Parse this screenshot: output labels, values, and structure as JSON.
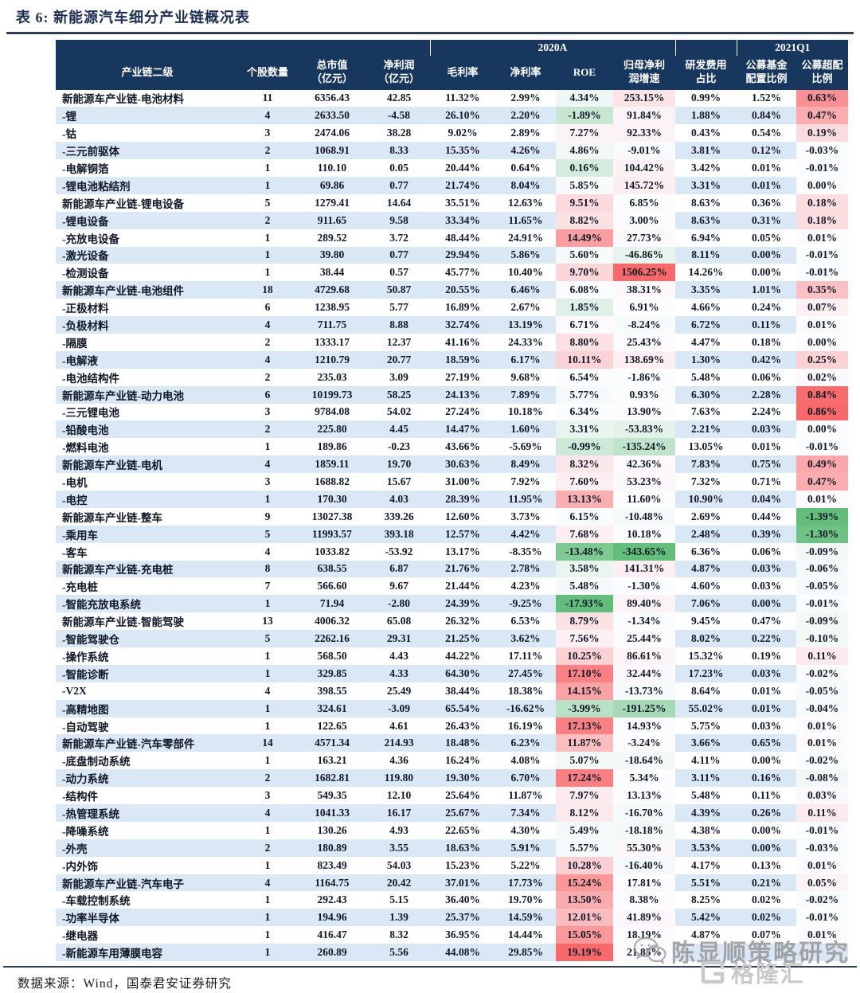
{
  "title": "表 6: 新能源汽车细分产业链概况表",
  "footer": {
    "source": "数据来源：Wind，国泰君安证券研究"
  },
  "watermarks": {
    "strategy": "陈显顺策略研究",
    "gelonghui": "格隆汇"
  },
  "colors": {
    "header_bg": "#17375E",
    "stripe": "#DAE7F5",
    "scale_red": "#F8696B",
    "scale_mid": "#FCFCFF",
    "scale_green": "#63BE7B"
  },
  "scales": {
    "roe": {
      "min": -17.93,
      "mid": 6.5,
      "max": 19.19
    },
    "growth": {
      "min": -343.65,
      "mid": 0,
      "max": 1506.25
    },
    "overweight": {
      "min": -1.39,
      "mid": 0,
      "max": 0.86
    }
  },
  "table": {
    "year_groups": [
      {
        "label": "",
        "span": 4
      },
      {
        "label": "2020A",
        "span": 4
      },
      {
        "label": "",
        "span": 1
      },
      {
        "label": "2021Q1",
        "span": 2
      }
    ],
    "columns": [
      "产业链二级",
      "个股数量",
      "总市值\n（亿元）",
      "净利润\n（亿元）",
      "毛利率",
      "净利率",
      "ROE",
      "归母净利\n润增速",
      "研发费用\n占比",
      "公募基金\n配置比例",
      "公募超配\n比例"
    ],
    "col_keys": [
      "industry",
      "stock-count",
      "market-cap",
      "net-profit",
      "gross-margin",
      "net-margin",
      "roe",
      "profit-growth",
      "rnd-ratio",
      "fund-allocation",
      "fund-overweight"
    ],
    "scale_cols": {
      "6": "roe",
      "7": "growth",
      "10": "overweight"
    },
    "rows": [
      [
        "新能源车产业链-电池材料",
        "11",
        "6356.43",
        "42.85",
        "11.32%",
        "2.99%",
        "4.34%",
        "253.15%",
        "0.99%",
        "1.52%",
        "0.63%"
      ],
      [
        "-锂",
        "4",
        "2633.50",
        "-4.58",
        "26.10%",
        "2.20%",
        "-1.89%",
        "91.84%",
        "1.88%",
        "0.84%",
        "0.47%"
      ],
      [
        "-钴",
        "3",
        "2474.06",
        "38.28",
        "9.02%",
        "2.89%",
        "7.27%",
        "92.33%",
        "0.43%",
        "0.54%",
        "0.19%"
      ],
      [
        "-三元前驱体",
        "2",
        "1068.91",
        "8.33",
        "15.35%",
        "4.26%",
        "4.86%",
        "-9.01%",
        "3.81%",
        "0.12%",
        "-0.03%"
      ],
      [
        "-电解铜箔",
        "1",
        "110.10",
        "0.05",
        "20.44%",
        "0.64%",
        "0.16%",
        "104.42%",
        "3.42%",
        "0.01%",
        "-0.01%"
      ],
      [
        "-锂电池粘结剂",
        "1",
        "69.86",
        "0.77",
        "21.74%",
        "8.04%",
        "5.85%",
        "145.72%",
        "3.31%",
        "0.01%",
        "0.00%"
      ],
      [
        "新能源车产业链-锂电设备",
        "5",
        "1279.41",
        "14.64",
        "35.51%",
        "12.63%",
        "9.51%",
        "6.85%",
        "8.63%",
        "0.36%",
        "0.18%"
      ],
      [
        "-锂电设备",
        "2",
        "911.65",
        "9.58",
        "33.34%",
        "11.65%",
        "8.82%",
        "3.00%",
        "8.63%",
        "0.31%",
        "0.18%"
      ],
      [
        "-充放电设备",
        "1",
        "289.52",
        "3.72",
        "48.44%",
        "24.91%",
        "14.49%",
        "27.73%",
        "6.94%",
        "0.05%",
        "0.01%"
      ],
      [
        "-激光设备",
        "1",
        "39.80",
        "0.77",
        "29.94%",
        "5.86%",
        "5.60%",
        "-46.86%",
        "8.11%",
        "0.00%",
        "-0.01%"
      ],
      [
        "-检测设备",
        "1",
        "38.44",
        "0.57",
        "45.77%",
        "10.40%",
        "9.70%",
        "1506.25%",
        "14.26%",
        "0.00%",
        "-0.01%"
      ],
      [
        "新能源车产业链-电池组件",
        "18",
        "4729.68",
        "50.87",
        "20.55%",
        "6.46%",
        "6.08%",
        "38.31%",
        "3.35%",
        "1.01%",
        "0.35%"
      ],
      [
        "-正极材料",
        "6",
        "1238.95",
        "5.77",
        "16.89%",
        "2.67%",
        "1.85%",
        "6.91%",
        "4.66%",
        "0.24%",
        "0.07%"
      ],
      [
        "-负极材料",
        "4",
        "711.75",
        "8.88",
        "32.74%",
        "13.19%",
        "6.71%",
        "-8.24%",
        "6.72%",
        "0.11%",
        "0.01%"
      ],
      [
        "-隔膜",
        "2",
        "1333.17",
        "12.37",
        "41.16%",
        "24.33%",
        "8.80%",
        "25.43%",
        "4.47%",
        "0.18%",
        "0.00%"
      ],
      [
        "-电解液",
        "4",
        "1210.79",
        "20.77",
        "18.59%",
        "6.17%",
        "10.11%",
        "138.69%",
        "1.30%",
        "0.42%",
        "0.25%"
      ],
      [
        "-电池结构件",
        "2",
        "235.03",
        "3.09",
        "27.19%",
        "9.68%",
        "6.54%",
        "-1.86%",
        "5.48%",
        "0.06%",
        "0.02%"
      ],
      [
        "新能源车产业链-动力电池",
        "6",
        "10199.73",
        "58.25",
        "24.13%",
        "7.89%",
        "5.77%",
        "0.93%",
        "6.30%",
        "2.28%",
        "0.84%"
      ],
      [
        "-三元锂电池",
        "3",
        "9784.08",
        "54.02",
        "27.24%",
        "10.18%",
        "6.34%",
        "13.90%",
        "7.63%",
        "2.24%",
        "0.86%"
      ],
      [
        "-铅酸电池",
        "2",
        "225.80",
        "4.45",
        "14.47%",
        "1.60%",
        "3.31%",
        "-53.83%",
        "2.21%",
        "0.03%",
        "0.00%"
      ],
      [
        "-燃料电池",
        "1",
        "189.86",
        "-0.23",
        "43.66%",
        "-5.69%",
        "-0.99%",
        "-135.24%",
        "13.05%",
        "0.01%",
        "-0.01%"
      ],
      [
        "新能源车产业链-电机",
        "4",
        "1859.11",
        "19.70",
        "30.63%",
        "8.49%",
        "8.32%",
        "42.36%",
        "7.83%",
        "0.75%",
        "0.49%"
      ],
      [
        "-电机",
        "3",
        "1688.82",
        "15.67",
        "31.00%",
        "7.92%",
        "7.60%",
        "53.23%",
        "7.32%",
        "0.71%",
        "0.47%"
      ],
      [
        "-电控",
        "1",
        "170.30",
        "4.03",
        "28.39%",
        "11.95%",
        "13.13%",
        "11.60%",
        "10.90%",
        "0.04%",
        "0.01%"
      ],
      [
        "新能源车产业链-整车",
        "9",
        "13027.38",
        "339.26",
        "12.60%",
        "3.73%",
        "6.15%",
        "-10.48%",
        "2.69%",
        "0.44%",
        "-1.39%"
      ],
      [
        "-乘用车",
        "5",
        "11993.57",
        "393.18",
        "12.57%",
        "4.42%",
        "7.68%",
        "10.18%",
        "2.48%",
        "0.39%",
        "-1.30%"
      ],
      [
        "-客车",
        "4",
        "1033.82",
        "-53.92",
        "13.17%",
        "-8.35%",
        "-13.48%",
        "-343.65%",
        "6.36%",
        "0.06%",
        "-0.09%"
      ],
      [
        "新能源车产业链-充电桩",
        "8",
        "638.55",
        "6.87",
        "21.76%",
        "2.78%",
        "3.58%",
        "141.31%",
        "4.87%",
        "0.03%",
        "-0.06%"
      ],
      [
        "-充电桩",
        "7",
        "566.60",
        "9.67",
        "21.44%",
        "4.23%",
        "5.48%",
        "-1.30%",
        "4.60%",
        "0.03%",
        "-0.05%"
      ],
      [
        "-智能充放电系统",
        "1",
        "71.94",
        "-2.80",
        "24.39%",
        "-9.25%",
        "-17.93%",
        "89.40%",
        "7.06%",
        "0.00%",
        "-0.01%"
      ],
      [
        "新能源车产业链-智能驾驶",
        "13",
        "4006.32",
        "65.08",
        "26.32%",
        "6.53%",
        "8.79%",
        "-1.34%",
        "9.45%",
        "0.47%",
        "-0.09%"
      ],
      [
        "-智能驾驶仓",
        "5",
        "2262.16",
        "29.31",
        "21.25%",
        "3.62%",
        "7.56%",
        "25.44%",
        "8.02%",
        "0.22%",
        "-0.10%"
      ],
      [
        "-操作系统",
        "1",
        "568.50",
        "4.43",
        "44.22%",
        "17.11%",
        "10.25%",
        "86.61%",
        "15.32%",
        "0.19%",
        "0.11%"
      ],
      [
        "-智能诊断",
        "1",
        "329.85",
        "4.33",
        "64.30%",
        "27.45%",
        "17.10%",
        "32.44%",
        "17.23%",
        "0.03%",
        "-0.02%"
      ],
      [
        "-V2X",
        "4",
        "398.55",
        "25.49",
        "38.44%",
        "18.38%",
        "14.15%",
        "-13.73%",
        "8.64%",
        "0.01%",
        "-0.05%"
      ],
      [
        "-高精地图",
        "1",
        "324.61",
        "-3.09",
        "65.54%",
        "-16.62%",
        "-3.99%",
        "-191.25%",
        "55.02%",
        "0.01%",
        "-0.04%"
      ],
      [
        "-自动驾驶",
        "1",
        "122.65",
        "4.61",
        "26.43%",
        "16.19%",
        "17.13%",
        "14.93%",
        "5.75%",
        "0.03%",
        "0.01%"
      ],
      [
        "新能源车产业链-汽车零部件",
        "14",
        "4571.34",
        "214.93",
        "18.48%",
        "6.23%",
        "11.87%",
        "-3.24%",
        "3.66%",
        "0.65%",
        "0.01%"
      ],
      [
        "-底盘制动系统",
        "1",
        "163.21",
        "4.36",
        "16.24%",
        "4.08%",
        "5.07%",
        "-18.64%",
        "4.11%",
        "0.00%",
        "-0.02%"
      ],
      [
        "-动力系统",
        "2",
        "1682.81",
        "119.80",
        "19.30%",
        "6.70%",
        "17.24%",
        "5.34%",
        "3.11%",
        "0.16%",
        "-0.08%"
      ],
      [
        "-结构件",
        "3",
        "549.35",
        "12.10",
        "25.64%",
        "11.87%",
        "7.97%",
        "13.13%",
        "5.48%",
        "0.11%",
        "0.03%"
      ],
      [
        "-热管理系统",
        "4",
        "1041.33",
        "16.17",
        "25.67%",
        "7.34%",
        "8.12%",
        "-16.70%",
        "4.39%",
        "0.26%",
        "0.11%"
      ],
      [
        "-降噪系统",
        "1",
        "130.26",
        "4.93",
        "22.65%",
        "4.30%",
        "5.49%",
        "-18.18%",
        "4.38%",
        "0.00%",
        "-0.01%"
      ],
      [
        "-外壳",
        "2",
        "180.89",
        "3.55",
        "18.63%",
        "5.91%",
        "5.57%",
        "55.30%",
        "3.53%",
        "0.00%",
        "-0.03%"
      ],
      [
        "-内外饰",
        "1",
        "823.49",
        "54.03",
        "15.23%",
        "5.22%",
        "10.28%",
        "-16.40%",
        "4.17%",
        "0.13%",
        "0.01%"
      ],
      [
        "新能源车产业链-汽车电子",
        "4",
        "1164.75",
        "20.42",
        "37.01%",
        "17.73%",
        "15.24%",
        "17.81%",
        "5.51%",
        "0.21%",
        "0.05%"
      ],
      [
        "-车载控制系统",
        "1",
        "292.43",
        "5.15",
        "36.40%",
        "19.70%",
        "13.50%",
        "8.38%",
        "8.25%",
        "0.02%",
        "-0.02%"
      ],
      [
        "-功率半导体",
        "1",
        "194.96",
        "1.39",
        "25.37%",
        "14.59%",
        "12.01%",
        "41.89%",
        "5.42%",
        "0.02%",
        "-0.01%"
      ],
      [
        "-继电器",
        "1",
        "416.47",
        "8.32",
        "36.95%",
        "14.44%",
        "15.05%",
        "18.19%",
        "4.87%",
        "0.07%",
        "0.01%"
      ],
      [
        "-新能源车用薄膜电容",
        "1",
        "260.89",
        "5.56",
        "44.08%",
        "29.85%",
        "19.19%",
        "21.85%",
        "",
        "",
        ""
      ]
    ]
  }
}
